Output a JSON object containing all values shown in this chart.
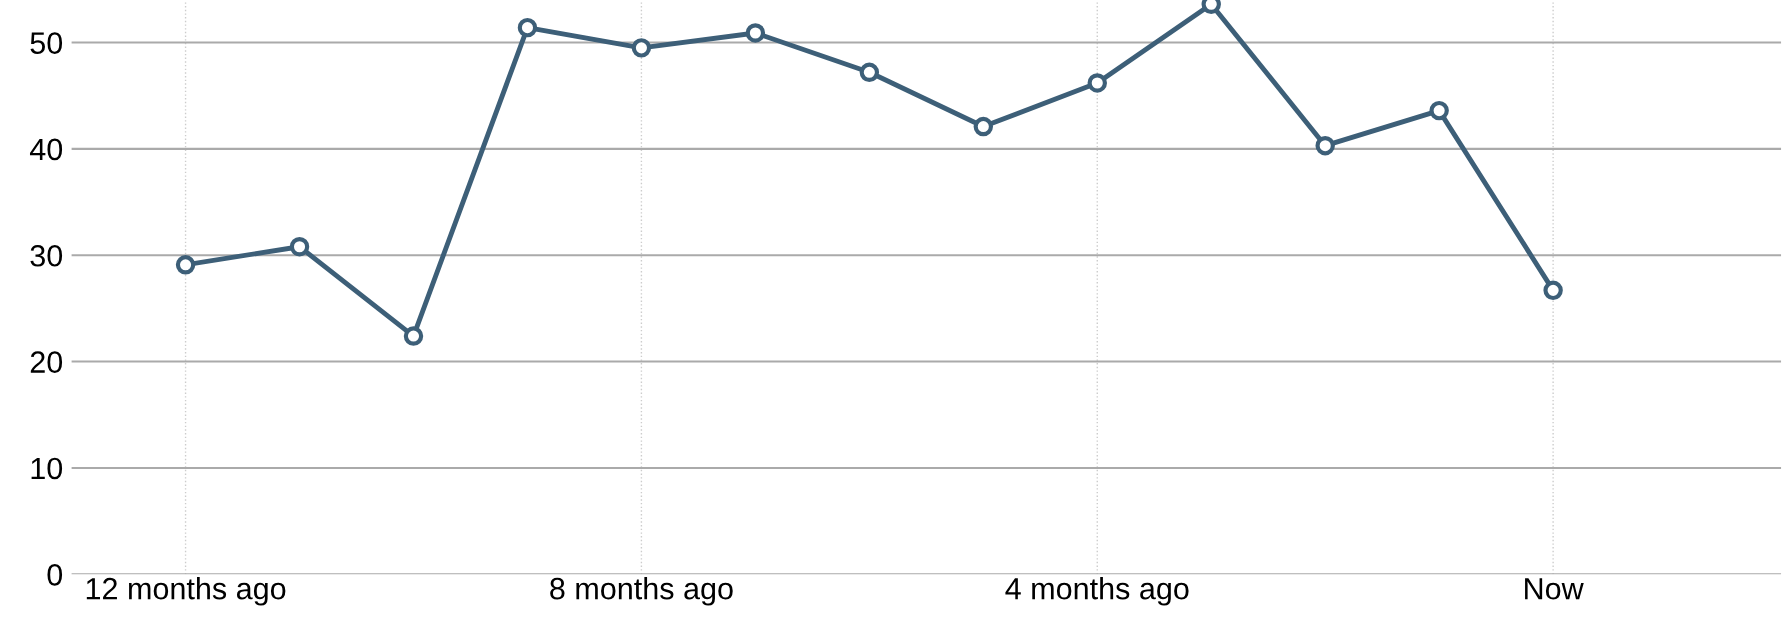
{
  "chart_data": {
    "type": "line",
    "categories": [
      "12 months ago",
      null,
      null,
      null,
      "8 months ago",
      null,
      null,
      null,
      "4 months ago",
      null,
      null,
      null,
      "Now"
    ],
    "series": [
      {
        "color": "#3d5f78",
        "values": [
          29.1,
          30.8,
          22.4,
          51.4,
          49.5,
          50.9,
          47.2,
          42.1,
          46.2,
          53.6,
          40.3,
          43.6,
          26.7
        ]
      }
    ],
    "ylim": [
      0,
      54
    ],
    "yticks": [
      0,
      10,
      20,
      30,
      40,
      50
    ],
    "grid": true,
    "marker": "circle",
    "line_style": "solid",
    "legend": false
  }
}
